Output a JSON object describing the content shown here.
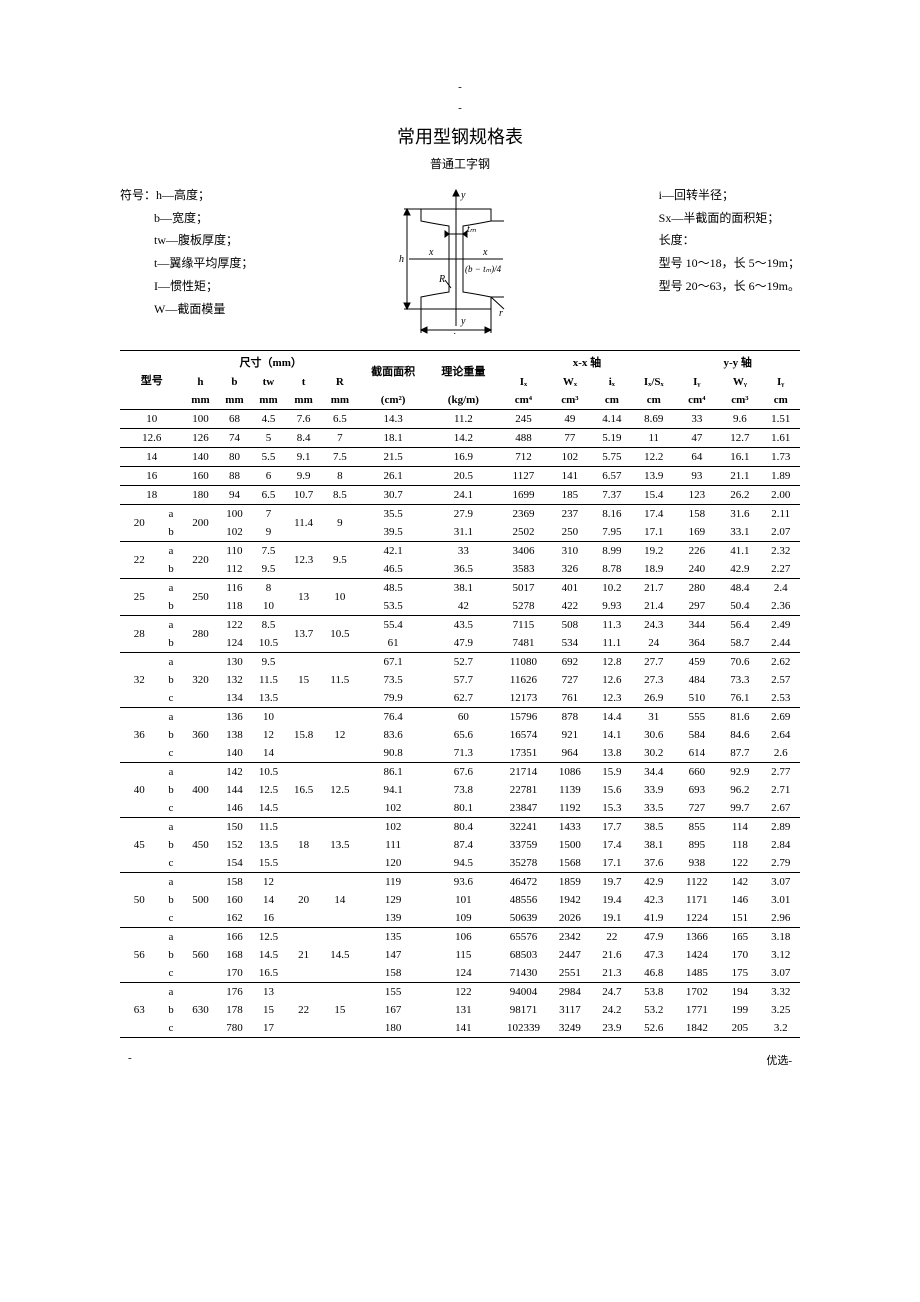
{
  "header": {
    "dash1": "-",
    "dash2": "-",
    "title": "常用型钢规格表",
    "subtitle": "普通工字钢"
  },
  "legend_left": {
    "prefix": "符号：",
    "h": "h—高度；",
    "b": "b—宽度；",
    "tw": "tw—腹板厚度；",
    "t": "t—翼缘平均厚度；",
    "I": "I—惯性矩；",
    "W": "W—截面模量"
  },
  "legend_right": {
    "i": "i—回转半径；",
    "Sx": "Sx—半截面的面积矩；",
    "len": "长度：",
    "r1": "型号 10～18，长 5～19m；",
    "r2": "型号 20～63，长 6～19m。"
  },
  "diagram": {
    "y": "y",
    "x": "x",
    "h": "h",
    "b": "b",
    "tw": "tₘ",
    "R": "R",
    "bexpr": "(b − tₘ)/4",
    "r": "r"
  },
  "headers": {
    "model": "型号",
    "dim": "尺寸（mm）",
    "h": "h",
    "b": "b",
    "tw": "tw",
    "t": "t",
    "R": "R",
    "hmm": "mm",
    "bmm": "mm",
    "twmm": "mm",
    "tmm": "mm",
    "Rmm": "mm",
    "area": "截面面积",
    "area_u": "(cm²)",
    "wt": "理论重量",
    "wt_u": "(kg/m)",
    "xx": "x-x 轴",
    "Ix": "Iₓ",
    "Wx": "Wₓ",
    "ix": "iₓ",
    "IxSx": "Iₓ/Sₓ",
    "Ix_u": "cm⁴",
    "Wx_u": "cm³",
    "ix_u": "cm",
    "IxSx_u": "cm",
    "yy": "y-y 轴",
    "Iy": "Iᵧ",
    "Wy": "Wᵧ",
    "iy": "Iᵧ",
    "Iy_u": "cm⁴",
    "Wy_u": "cm³",
    "iy_u": "cm"
  },
  "simple_rows": [
    {
      "m": "10",
      "h": "100",
      "b": "68",
      "tw": "4.5",
      "t": "7.6",
      "R": "6.5",
      "area": "14.3",
      "wt": "11.2",
      "Ix": "245",
      "Wx": "49",
      "ix": "4.14",
      "IxSx": "8.69",
      "Iy": "33",
      "Wy": "9.6",
      "iy": "1.51"
    },
    {
      "m": "12.6",
      "h": "126",
      "b": "74",
      "tw": "5",
      "t": "8.4",
      "R": "7",
      "area": "18.1",
      "wt": "14.2",
      "Ix": "488",
      "Wx": "77",
      "ix": "5.19",
      "IxSx": "11",
      "Iy": "47",
      "Wy": "12.7",
      "iy": "1.61"
    },
    {
      "m": "14",
      "h": "140",
      "b": "80",
      "tw": "5.5",
      "t": "9.1",
      "R": "7.5",
      "area": "21.5",
      "wt": "16.9",
      "Ix": "712",
      "Wx": "102",
      "ix": "5.75",
      "IxSx": "12.2",
      "Iy": "64",
      "Wy": "16.1",
      "iy": "1.73"
    },
    {
      "m": "16",
      "h": "160",
      "b": "88",
      "tw": "6",
      "t": "9.9",
      "R": "8",
      "area": "26.1",
      "wt": "20.5",
      "Ix": "1127",
      "Wx": "141",
      "ix": "6.57",
      "IxSx": "13.9",
      "Iy": "93",
      "Wy": "21.1",
      "iy": "1.89"
    },
    {
      "m": "18",
      "h": "180",
      "b": "94",
      "tw": "6.5",
      "t": "10.7",
      "R": "8.5",
      "area": "30.7",
      "wt": "24.1",
      "Ix": "1699",
      "Wx": "185",
      "ix": "7.37",
      "IxSx": "15.4",
      "Iy": "123",
      "Wy": "26.2",
      "iy": "2.00"
    }
  ],
  "grouped_rows": [
    {
      "m": "20",
      "h": "200",
      "t": "11.4",
      "R": "9",
      "subs": [
        {
          "s": "a",
          "b": "100",
          "tw": "7",
          "area": "35.5",
          "wt": "27.9",
          "Ix": "2369",
          "Wx": "237",
          "ix": "8.16",
          "IxSx": "17.4",
          "Iy": "158",
          "Wy": "31.6",
          "iy": "2.11"
        },
        {
          "s": "b",
          "b": "102",
          "tw": "9",
          "area": "39.5",
          "wt": "31.1",
          "Ix": "2502",
          "Wx": "250",
          "ix": "7.95",
          "IxSx": "17.1",
          "Iy": "169",
          "Wy": "33.1",
          "iy": "2.07"
        }
      ]
    },
    {
      "m": "22",
      "h": "220",
      "t": "12.3",
      "R": "9.5",
      "subs": [
        {
          "s": "a",
          "b": "110",
          "tw": "7.5",
          "area": "42.1",
          "wt": "33",
          "Ix": "3406",
          "Wx": "310",
          "ix": "8.99",
          "IxSx": "19.2",
          "Iy": "226",
          "Wy": "41.1",
          "iy": "2.32"
        },
        {
          "s": "b",
          "b": "112",
          "tw": "9.5",
          "area": "46.5",
          "wt": "36.5",
          "Ix": "3583",
          "Wx": "326",
          "ix": "8.78",
          "IxSx": "18.9",
          "Iy": "240",
          "Wy": "42.9",
          "iy": "2.27"
        }
      ]
    },
    {
      "m": "25",
      "h": "250",
      "t": "13",
      "R": "10",
      "subs": [
        {
          "s": "a",
          "b": "116",
          "tw": "8",
          "area": "48.5",
          "wt": "38.1",
          "Ix": "5017",
          "Wx": "401",
          "ix": "10.2",
          "IxSx": "21.7",
          "Iy": "280",
          "Wy": "48.4",
          "iy": "2.4"
        },
        {
          "s": "b",
          "b": "118",
          "tw": "10",
          "area": "53.5",
          "wt": "42",
          "Ix": "5278",
          "Wx": "422",
          "ix": "9.93",
          "IxSx": "21.4",
          "Iy": "297",
          "Wy": "50.4",
          "iy": "2.36"
        }
      ]
    },
    {
      "m": "28",
      "h": "280",
      "t": "13.7",
      "R": "10.5",
      "subs": [
        {
          "s": "a",
          "b": "122",
          "tw": "8.5",
          "area": "55.4",
          "wt": "43.5",
          "Ix": "7115",
          "Wx": "508",
          "ix": "11.3",
          "IxSx": "24.3",
          "Iy": "344",
          "Wy": "56.4",
          "iy": "2.49"
        },
        {
          "s": "b",
          "b": "124",
          "tw": "10.5",
          "area": "61",
          "wt": "47.9",
          "Ix": "7481",
          "Wx": "534",
          "ix": "11.1",
          "IxSx": "24",
          "Iy": "364",
          "Wy": "58.7",
          "iy": "2.44"
        }
      ]
    },
    {
      "m": "32",
      "h": "320",
      "t": "15",
      "R": "11.5",
      "subs": [
        {
          "s": "a",
          "b": "130",
          "tw": "9.5",
          "area": "67.1",
          "wt": "52.7",
          "Ix": "11080",
          "Wx": "692",
          "ix": "12.8",
          "IxSx": "27.7",
          "Iy": "459",
          "Wy": "70.6",
          "iy": "2.62"
        },
        {
          "s": "b",
          "b": "132",
          "tw": "11.5",
          "area": "73.5",
          "wt": "57.7",
          "Ix": "11626",
          "Wx": "727",
          "ix": "12.6",
          "IxSx": "27.3",
          "Iy": "484",
          "Wy": "73.3",
          "iy": "2.57"
        },
        {
          "s": "c",
          "b": "134",
          "tw": "13.5",
          "area": "79.9",
          "wt": "62.7",
          "Ix": "12173",
          "Wx": "761",
          "ix": "12.3",
          "IxSx": "26.9",
          "Iy": "510",
          "Wy": "76.1",
          "iy": "2.53"
        }
      ]
    },
    {
      "m": "36",
      "h": "360",
      "t": "15.8",
      "R": "12",
      "subs": [
        {
          "s": "a",
          "b": "136",
          "tw": "10",
          "area": "76.4",
          "wt": "60",
          "Ix": "15796",
          "Wx": "878",
          "ix": "14.4",
          "IxSx": "31",
          "Iy": "555",
          "Wy": "81.6",
          "iy": "2.69"
        },
        {
          "s": "b",
          "b": "138",
          "tw": "12",
          "area": "83.6",
          "wt": "65.6",
          "Ix": "16574",
          "Wx": "921",
          "ix": "14.1",
          "IxSx": "30.6",
          "Iy": "584",
          "Wy": "84.6",
          "iy": "2.64"
        },
        {
          "s": "c",
          "b": "140",
          "tw": "14",
          "area": "90.8",
          "wt": "71.3",
          "Ix": "17351",
          "Wx": "964",
          "ix": "13.8",
          "IxSx": "30.2",
          "Iy": "614",
          "Wy": "87.7",
          "iy": "2.6"
        }
      ]
    },
    {
      "m": "40",
      "h": "400",
      "t": "16.5",
      "R": "12.5",
      "subs": [
        {
          "s": "a",
          "b": "142",
          "tw": "10.5",
          "area": "86.1",
          "wt": "67.6",
          "Ix": "21714",
          "Wx": "1086",
          "ix": "15.9",
          "IxSx": "34.4",
          "Iy": "660",
          "Wy": "92.9",
          "iy": "2.77"
        },
        {
          "s": "b",
          "b": "144",
          "tw": "12.5",
          "area": "94.1",
          "wt": "73.8",
          "Ix": "22781",
          "Wx": "1139",
          "ix": "15.6",
          "IxSx": "33.9",
          "Iy": "693",
          "Wy": "96.2",
          "iy": "2.71"
        },
        {
          "s": "c",
          "b": "146",
          "tw": "14.5",
          "area": "102",
          "wt": "80.1",
          "Ix": "23847",
          "Wx": "1192",
          "ix": "15.3",
          "IxSx": "33.5",
          "Iy": "727",
          "Wy": "99.7",
          "iy": "2.67"
        }
      ]
    },
    {
      "m": "45",
      "h": "450",
      "t": "18",
      "R": "13.5",
      "subs": [
        {
          "s": "a",
          "b": "150",
          "tw": "11.5",
          "area": "102",
          "wt": "80.4",
          "Ix": "32241",
          "Wx": "1433",
          "ix": "17.7",
          "IxSx": "38.5",
          "Iy": "855",
          "Wy": "114",
          "iy": "2.89"
        },
        {
          "s": "b",
          "b": "152",
          "tw": "13.5",
          "area": "111",
          "wt": "87.4",
          "Ix": "33759",
          "Wx": "1500",
          "ix": "17.4",
          "IxSx": "38.1",
          "Iy": "895",
          "Wy": "118",
          "iy": "2.84"
        },
        {
          "s": "c",
          "b": "154",
          "tw": "15.5",
          "area": "120",
          "wt": "94.5",
          "Ix": "35278",
          "Wx": "1568",
          "ix": "17.1",
          "IxSx": "37.6",
          "Iy": "938",
          "Wy": "122",
          "iy": "2.79"
        }
      ]
    },
    {
      "m": "50",
      "h": "500",
      "t": "20",
      "R": "14",
      "subs": [
        {
          "s": "a",
          "b": "158",
          "tw": "12",
          "area": "119",
          "wt": "93.6",
          "Ix": "46472",
          "Wx": "1859",
          "ix": "19.7",
          "IxSx": "42.9",
          "Iy": "1122",
          "Wy": "142",
          "iy": "3.07"
        },
        {
          "s": "b",
          "b": "160",
          "tw": "14",
          "area": "129",
          "wt": "101",
          "Ix": "48556",
          "Wx": "1942",
          "ix": "19.4",
          "IxSx": "42.3",
          "Iy": "1171",
          "Wy": "146",
          "iy": "3.01"
        },
        {
          "s": "c",
          "b": "162",
          "tw": "16",
          "area": "139",
          "wt": "109",
          "Ix": "50639",
          "Wx": "2026",
          "ix": "19.1",
          "IxSx": "41.9",
          "Iy": "1224",
          "Wy": "151",
          "iy": "2.96"
        }
      ]
    },
    {
      "m": "56",
      "h": "560",
      "t": "21",
      "R": "14.5",
      "subs": [
        {
          "s": "a",
          "b": "166",
          "tw": "12.5",
          "area": "135",
          "wt": "106",
          "Ix": "65576",
          "Wx": "2342",
          "ix": "22",
          "IxSx": "47.9",
          "Iy": "1366",
          "Wy": "165",
          "iy": "3.18"
        },
        {
          "s": "b",
          "b": "168",
          "tw": "14.5",
          "area": "147",
          "wt": "115",
          "Ix": "68503",
          "Wx": "2447",
          "ix": "21.6",
          "IxSx": "47.3",
          "Iy": "1424",
          "Wy": "170",
          "iy": "3.12"
        },
        {
          "s": "c",
          "b": "170",
          "tw": "16.5",
          "area": "158",
          "wt": "124",
          "Ix": "71430",
          "Wx": "2551",
          "ix": "21.3",
          "IxSx": "46.8",
          "Iy": "1485",
          "Wy": "175",
          "iy": "3.07"
        }
      ]
    },
    {
      "m": "63",
      "h": "630",
      "t": "22",
      "R": "15",
      "subs": [
        {
          "s": "a",
          "b": "176",
          "tw": "13",
          "area": "155",
          "wt": "122",
          "Ix": "94004",
          "Wx": "2984",
          "ix": "24.7",
          "IxSx": "53.8",
          "Iy": "1702",
          "Wy": "194",
          "iy": "3.32"
        },
        {
          "s": "b",
          "b": "178",
          "tw": "15",
          "area": "167",
          "wt": "131",
          "Ix": "98171",
          "Wx": "3117",
          "ix": "24.2",
          "IxSx": "53.2",
          "Iy": "1771",
          "Wy": "199",
          "iy": "3.25"
        },
        {
          "s": "c",
          "b": "780",
          "tw": "17",
          "area": "180",
          "wt": "141",
          "Ix": "102339",
          "Wx": "3249",
          "ix": "23.9",
          "IxSx": "52.6",
          "Iy": "1842",
          "Wy": "205",
          "iy": "3.2"
        }
      ]
    }
  ],
  "footer": {
    "left": "-",
    "right": "优选-"
  }
}
